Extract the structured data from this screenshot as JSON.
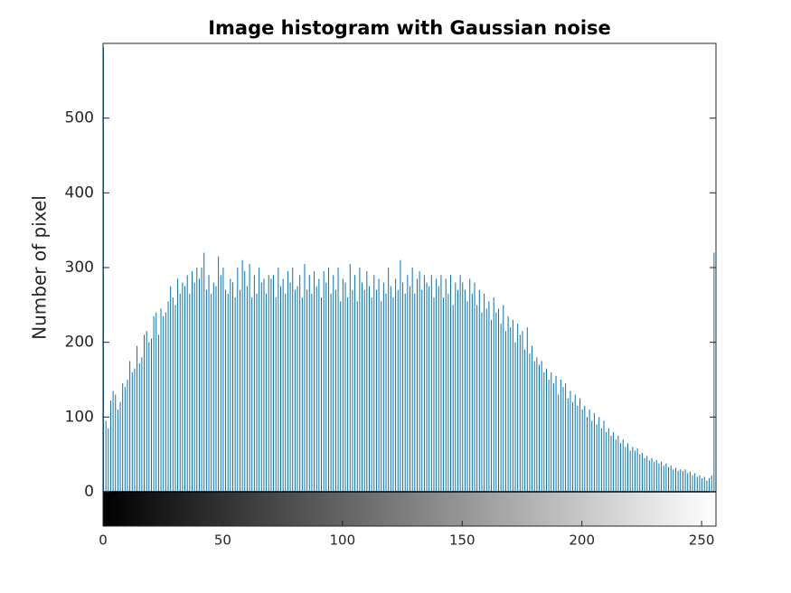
{
  "chart_data": {
    "type": "histogram",
    "title": "Image histogram with Gaussian noise",
    "y_label": "Number of pixel",
    "color": "#0072bd",
    "xlim": [
      0,
      256
    ],
    "ylim": [
      0,
      600
    ],
    "xticks": [
      0,
      50,
      100,
      150,
      200,
      250
    ],
    "yticks": [
      0,
      100,
      200,
      300,
      400,
      500
    ],
    "x": [
      0,
      1,
      2,
      3,
      4,
      5,
      6,
      7,
      8,
      9,
      10,
      11,
      12,
      13,
      14,
      15,
      16,
      17,
      18,
      19,
      20,
      21,
      22,
      23,
      24,
      25,
      26,
      27,
      28,
      29,
      30,
      31,
      32,
      33,
      34,
      35,
      36,
      37,
      38,
      39,
      40,
      41,
      42,
      43,
      44,
      45,
      46,
      47,
      48,
      49,
      50,
      51,
      52,
      53,
      54,
      55,
      56,
      57,
      58,
      59,
      60,
      61,
      62,
      63,
      64,
      65,
      66,
      67,
      68,
      69,
      70,
      71,
      72,
      73,
      74,
      75,
      76,
      77,
      78,
      79,
      80,
      81,
      82,
      83,
      84,
      85,
      86,
      87,
      88,
      89,
      90,
      91,
      92,
      93,
      94,
      95,
      96,
      97,
      98,
      99,
      100,
      101,
      102,
      103,
      104,
      105,
      106,
      107,
      108,
      109,
      110,
      111,
      112,
      113,
      114,
      115,
      116,
      117,
      118,
      119,
      120,
      121,
      122,
      123,
      124,
      125,
      126,
      127,
      128,
      129,
      130,
      131,
      132,
      133,
      134,
      135,
      136,
      137,
      138,
      139,
      140,
      141,
      142,
      143,
      144,
      145,
      146,
      147,
      148,
      149,
      150,
      151,
      152,
      153,
      154,
      155,
      156,
      157,
      158,
      159,
      160,
      161,
      162,
      163,
      164,
      165,
      166,
      167,
      168,
      169,
      170,
      171,
      172,
      173,
      174,
      175,
      176,
      177,
      178,
      179,
      180,
      181,
      182,
      183,
      184,
      185,
      186,
      187,
      188,
      189,
      190,
      191,
      192,
      193,
      194,
      195,
      196,
      197,
      198,
      199,
      200,
      201,
      202,
      203,
      204,
      205,
      206,
      207,
      208,
      209,
      210,
      211,
      212,
      213,
      214,
      215,
      216,
      217,
      218,
      219,
      220,
      221,
      222,
      223,
      224,
      225,
      226,
      227,
      228,
      229,
      230,
      231,
      232,
      233,
      234,
      235,
      236,
      237,
      238,
      239,
      240,
      241,
      242,
      243,
      244,
      245,
      246,
      247,
      248,
      249,
      250,
      251,
      252,
      253,
      254,
      255
    ],
    "values": [
      595,
      95,
      85,
      122,
      135,
      130,
      110,
      120,
      145,
      140,
      150,
      175,
      160,
      165,
      195,
      172,
      180,
      210,
      215,
      200,
      205,
      235,
      240,
      210,
      245,
      235,
      240,
      255,
      275,
      260,
      250,
      285,
      265,
      280,
      275,
      290,
      265,
      295,
      280,
      300,
      285,
      300,
      320,
      270,
      290,
      265,
      280,
      275,
      315,
      290,
      300,
      270,
      265,
      285,
      280,
      260,
      300,
      270,
      310,
      295,
      275,
      305,
      260,
      290,
      265,
      300,
      280,
      285,
      265,
      290,
      285,
      290,
      260,
      300,
      275,
      285,
      265,
      295,
      280,
      300,
      270,
      275,
      290,
      260,
      305,
      270,
      290,
      265,
      295,
      275,
      285,
      260,
      295,
      280,
      300,
      265,
      290,
      270,
      300,
      255,
      285,
      280,
      260,
      305,
      270,
      290,
      255,
      300,
      280,
      270,
      295,
      275,
      260,
      290,
      270,
      285,
      255,
      280,
      265,
      300,
      275,
      260,
      285,
      270,
      310,
      280,
      265,
      290,
      275,
      300,
      265,
      285,
      295,
      270,
      290,
      280,
      275,
      290,
      260,
      285,
      275,
      290,
      260,
      285,
      265,
      290,
      250,
      280,
      270,
      290,
      280,
      270,
      255,
      285,
      265,
      280,
      250,
      270,
      240,
      265,
      245,
      255,
      230,
      260,
      240,
      245,
      225,
      250,
      215,
      235,
      220,
      230,
      200,
      225,
      210,
      215,
      190,
      220,
      185,
      195,
      175,
      180,
      170,
      175,
      160,
      165,
      150,
      160,
      145,
      155,
      130,
      150,
      140,
      145,
      125,
      135,
      120,
      130,
      115,
      125,
      110,
      115,
      100,
      110,
      95,
      105,
      90,
      100,
      85,
      95,
      80,
      85,
      75,
      80,
      70,
      75,
      65,
      70,
      60,
      65,
      55,
      60,
      55,
      58,
      50,
      52,
      45,
      48,
      42,
      45,
      40,
      42,
      38,
      40,
      35,
      38,
      33,
      35,
      30,
      32,
      28,
      30,
      28,
      30,
      25,
      27,
      22,
      25,
      20,
      22,
      18,
      20,
      15,
      18,
      22,
      320
    ]
  }
}
